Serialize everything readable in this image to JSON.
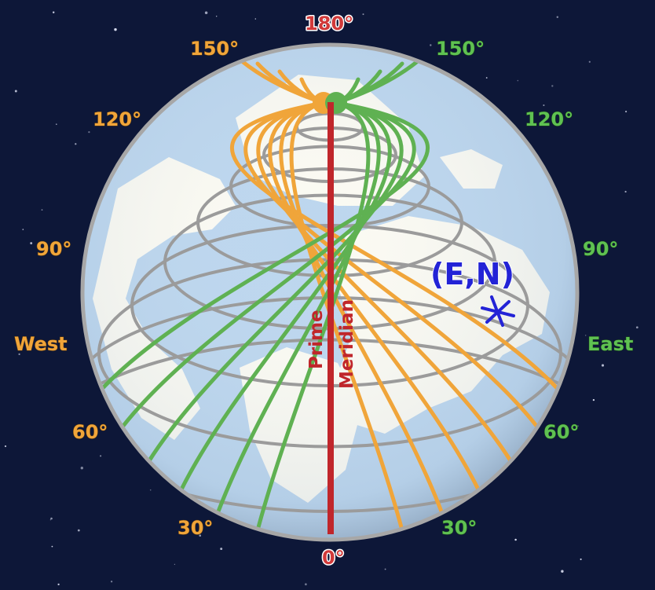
{
  "labels": {
    "top_180": "180°",
    "bottom_0": "0°",
    "west": "West",
    "east": "East",
    "west_150": "150°",
    "west_120": "120°",
    "west_90": "90°",
    "west_60": "60°",
    "west_30": "30°",
    "east_150": "150°",
    "east_120": "120°",
    "east_90": "90°",
    "east_60": "60°",
    "east_30": "30°",
    "prime": "Prime",
    "meridian": "Meridian",
    "point": "(E,N)"
  },
  "colors": {
    "space": "#0d1738",
    "ocean": "#bcd6ee",
    "land": "#fbfaf2",
    "parallel": "#9b9b9b",
    "west_meridians": "#f0a53a",
    "east_meridians": "#5fb152",
    "prime_meridian": "#c0262b",
    "point_marker": "#2323d6"
  },
  "icons": {
    "point_marker": "cross-star-icon"
  }
}
